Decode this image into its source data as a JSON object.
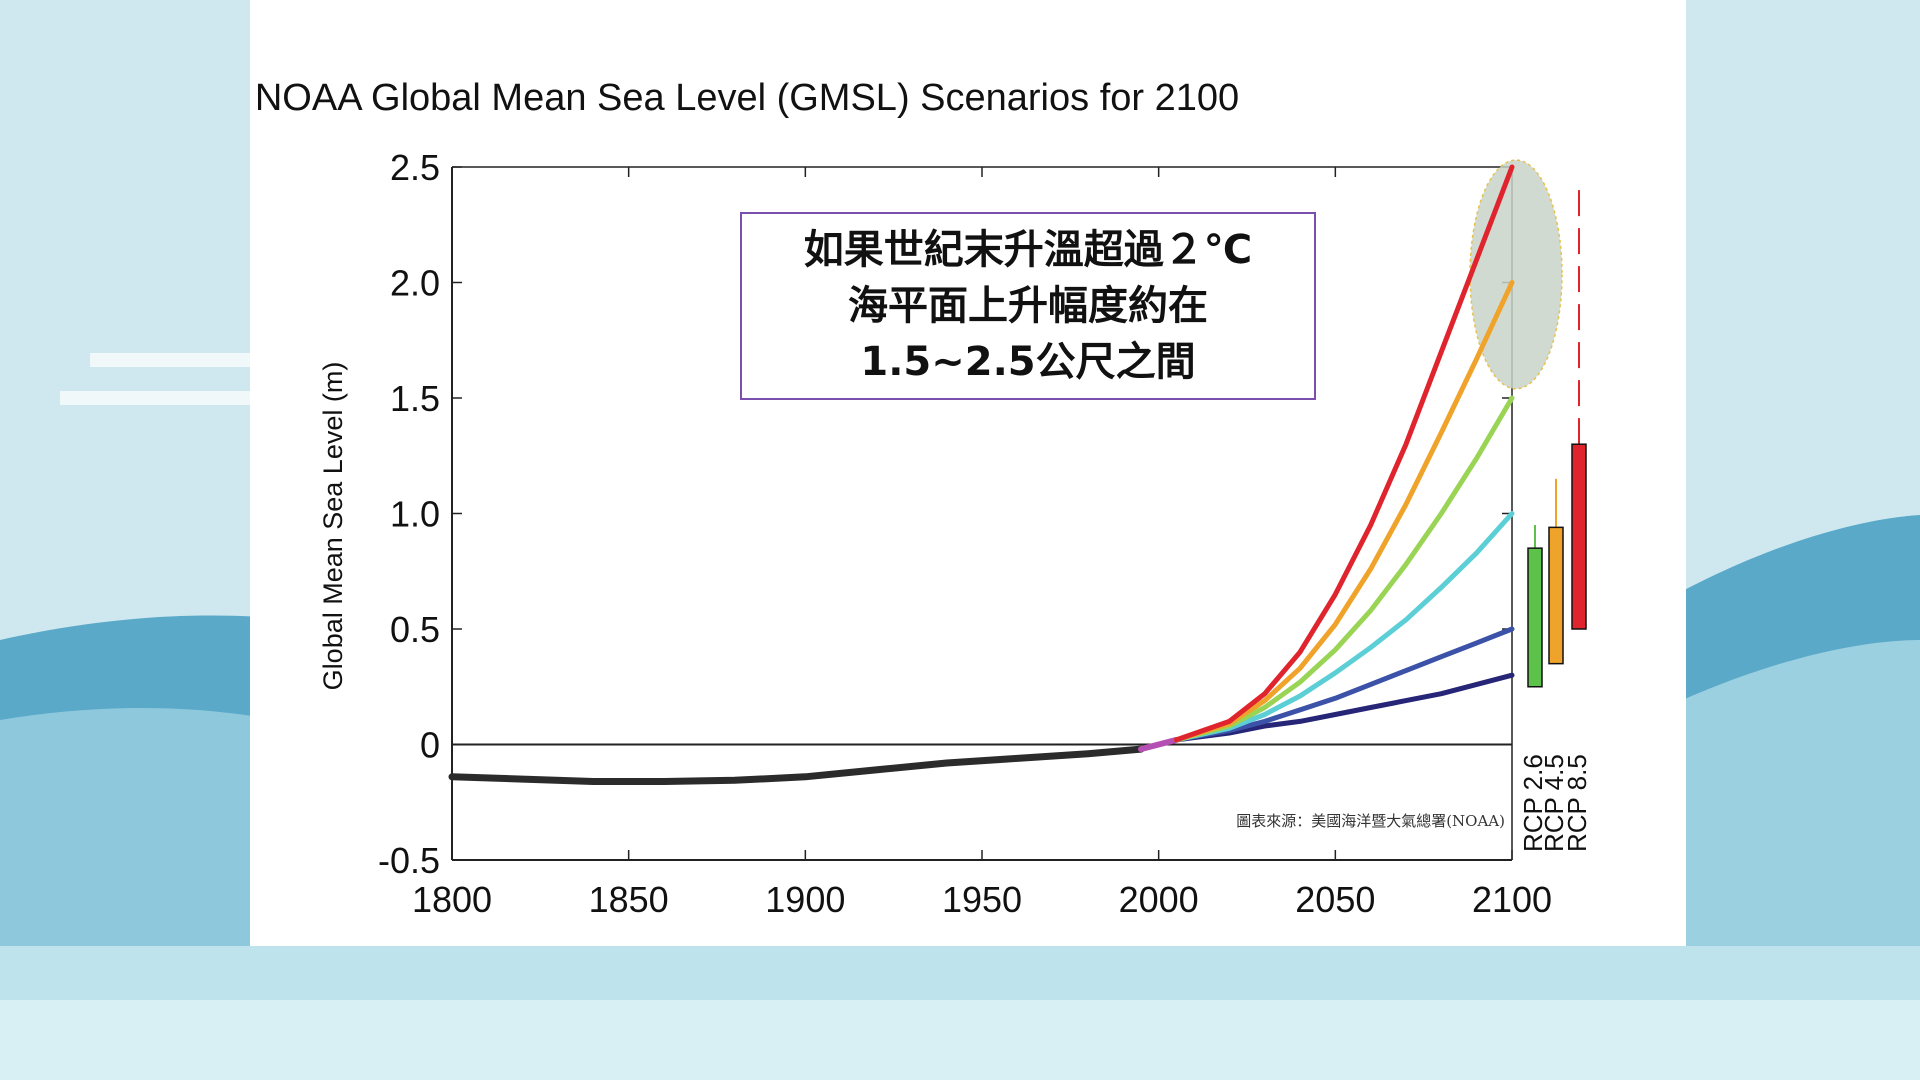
{
  "callout": {
    "lines": [
      "如果世紀末升溫超過２℃",
      "海平面上升幅度約在",
      "1.5~2.5公尺之間"
    ]
  },
  "source_note": "圖表來源：美國海洋暨大氣總署(NOAA)",
  "colors": {
    "background_sky": "#cfe8ef",
    "wave": "#5aa9c9",
    "callout_border": "#7b4fae",
    "highlight_ellipse": "#c9d3c9",
    "arrow": "#f2bc16"
  },
  "chart_data": {
    "type": "line",
    "title": "NOAA Global Mean Sea Level (GMSL) Scenarios for 2100",
    "xlabel": "",
    "ylabel": "Global Mean Sea Level (m)",
    "xlim": [
      1800,
      2100
    ],
    "ylim": [
      -0.5,
      2.5
    ],
    "x_ticks": [
      "1800",
      "1850",
      "1900",
      "1950",
      "2000",
      "2050",
      "2100"
    ],
    "y_ticks": [
      "2.5",
      "2.0",
      "1.5",
      "1.0",
      "0.5",
      "0",
      "-0.5"
    ],
    "grid": false,
    "legend": "none",
    "historical": {
      "color": "#2b2b2b",
      "x": [
        1800,
        1820,
        1840,
        1860,
        1880,
        1900,
        1920,
        1940,
        1960,
        1980,
        1995
      ],
      "y": [
        -0.14,
        -0.15,
        -0.16,
        -0.16,
        -0.155,
        -0.14,
        -0.11,
        -0.08,
        -0.06,
        -0.04,
        -0.02
      ]
    },
    "bridge": {
      "color": "#b44fb3",
      "x": [
        1995,
        2000,
        2005
      ],
      "y": [
        -0.02,
        0.0,
        0.02
      ]
    },
    "series": [
      {
        "color": "#e0242e",
        "x": [
          2005,
          2020,
          2030,
          2040,
          2050,
          2060,
          2070,
          2080,
          2090,
          2100
        ],
        "y": [
          0.02,
          0.1,
          0.22,
          0.4,
          0.65,
          0.95,
          1.3,
          1.7,
          2.1,
          2.5
        ]
      },
      {
        "color": "#f0a32a",
        "x": [
          2005,
          2020,
          2030,
          2040,
          2050,
          2060,
          2070,
          2080,
          2090,
          2100
        ],
        "y": [
          0.02,
          0.09,
          0.19,
          0.33,
          0.52,
          0.76,
          1.04,
          1.35,
          1.67,
          2.0
        ]
      },
      {
        "color": "#9ad454",
        "x": [
          2005,
          2020,
          2030,
          2040,
          2050,
          2060,
          2070,
          2080,
          2090,
          2100
        ],
        "y": [
          0.02,
          0.08,
          0.16,
          0.27,
          0.41,
          0.58,
          0.78,
          1.0,
          1.24,
          1.5
        ]
      },
      {
        "color": "#5ccfd6",
        "x": [
          2005,
          2020,
          2030,
          2040,
          2050,
          2060,
          2070,
          2080,
          2090,
          2100
        ],
        "y": [
          0.02,
          0.07,
          0.13,
          0.21,
          0.31,
          0.42,
          0.54,
          0.68,
          0.83,
          1.0
        ]
      },
      {
        "color": "#3b52a8",
        "x": [
          2005,
          2020,
          2030,
          2040,
          2050,
          2060,
          2070,
          2080,
          2090,
          2100
        ],
        "y": [
          0.02,
          0.06,
          0.1,
          0.15,
          0.2,
          0.26,
          0.32,
          0.38,
          0.44,
          0.5
        ]
      },
      {
        "color": "#262577",
        "x": [
          2005,
          2020,
          2030,
          2040,
          2050,
          2060,
          2070,
          2080,
          2090,
          2100
        ],
        "y": [
          0.02,
          0.05,
          0.08,
          0.1,
          0.13,
          0.16,
          0.19,
          0.22,
          0.26,
          0.3
        ]
      }
    ],
    "rcp_ranges": [
      {
        "label": "RCP 2.6",
        "color": "#5cc24a",
        "low": 0.25,
        "high": 0.85,
        "whisker_top": 0.95
      },
      {
        "label": "RCP 4.5",
        "color": "#f0a32a",
        "low": 0.35,
        "high": 0.94,
        "whisker_top": 1.15
      },
      {
        "label": "RCP 8.5",
        "color": "#e0242e",
        "low": 0.5,
        "high": 1.3,
        "whisker_top": 2.4,
        "whisker_dashed": true
      }
    ]
  }
}
